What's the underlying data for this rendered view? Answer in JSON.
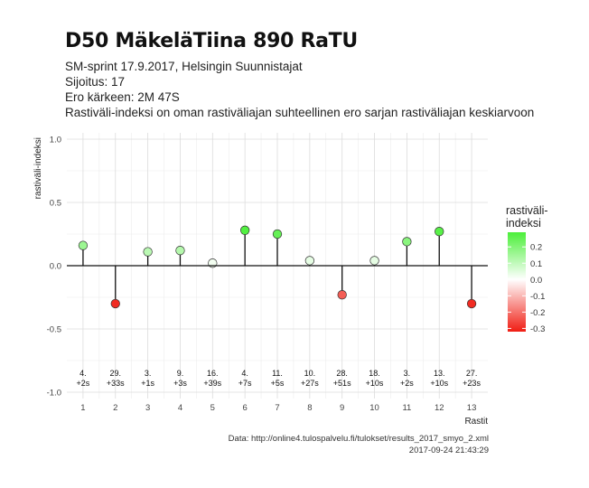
{
  "title": "D50 MäkeläTiina 890 RaTU",
  "subtitle_lines": [
    "SM-sprint 17.9.2017, Helsingin Suunnistajat",
    "Sijoitus: 17",
    "Ero kärkeen: 2M 47S",
    "Rastiväli-indeksi on oman rastiväliajan suhteellinen ero sarjan rastiväliajan keskiarvoon"
  ],
  "caption_lines": [
    "Data: http://online4.tulospalvelu.fi/tulokset/results_2017_smyo_2.xml",
    "2017-09-24 21:43:29"
  ],
  "chart_data": {
    "type": "scatter",
    "title": "D50 MäkeläTiina 890 RaTU",
    "xlabel": "Rastit",
    "ylabel": "rastiväli-indeksi",
    "x": [
      1,
      2,
      3,
      4,
      5,
      6,
      7,
      8,
      9,
      10,
      11,
      12,
      13
    ],
    "values": [
      0.16,
      -0.3,
      0.11,
      0.12,
      0.02,
      0.28,
      0.25,
      0.04,
      -0.23,
      0.04,
      0.19,
      0.27,
      -0.3
    ],
    "point_labels": [
      [
        "4.",
        "+2s"
      ],
      [
        "29.",
        "+33s"
      ],
      [
        "3.",
        "+1s"
      ],
      [
        "9.",
        "+3s"
      ],
      [
        "16.",
        "+39s"
      ],
      [
        "4.",
        "+7s"
      ],
      [
        "11.",
        "+5s"
      ],
      [
        "10.",
        "+27s"
      ],
      [
        "28.",
        "+51s"
      ],
      [
        "18.",
        "+10s"
      ],
      [
        "3.",
        "+2s"
      ],
      [
        "13.",
        "+10s"
      ],
      [
        "27.",
        "+23s"
      ]
    ],
    "x_ticks": [
      "1",
      "2",
      "3",
      "4",
      "5",
      "6",
      "7",
      "8",
      "9",
      "10",
      "11",
      "12",
      "13"
    ],
    "y_ticks": [
      "1.0",
      "0.5",
      "0.0",
      "-0.5",
      "-1.0"
    ],
    "y_tick_values": [
      1.0,
      0.5,
      0.0,
      -0.5,
      -1.0
    ],
    "ylim": [
      -1.05,
      1.05
    ],
    "xlim": [
      0.5,
      13.5
    ],
    "grid": true,
    "legend": {
      "title_lines": [
        "rastiväli-",
        "indeksi"
      ],
      "ticks": [
        "0.2",
        "0.1",
        "0.0",
        "-0.1",
        "-0.2",
        "-0.3"
      ],
      "tick_values": [
        0.2,
        0.1,
        0.0,
        -0.1,
        -0.2,
        -0.3
      ],
      "range": [
        -0.32,
        0.29
      ],
      "placement": "right"
    },
    "colors": {
      "high": "#4cef3a",
      "mid": "#ffffff",
      "low": "#f01d13"
    }
  }
}
